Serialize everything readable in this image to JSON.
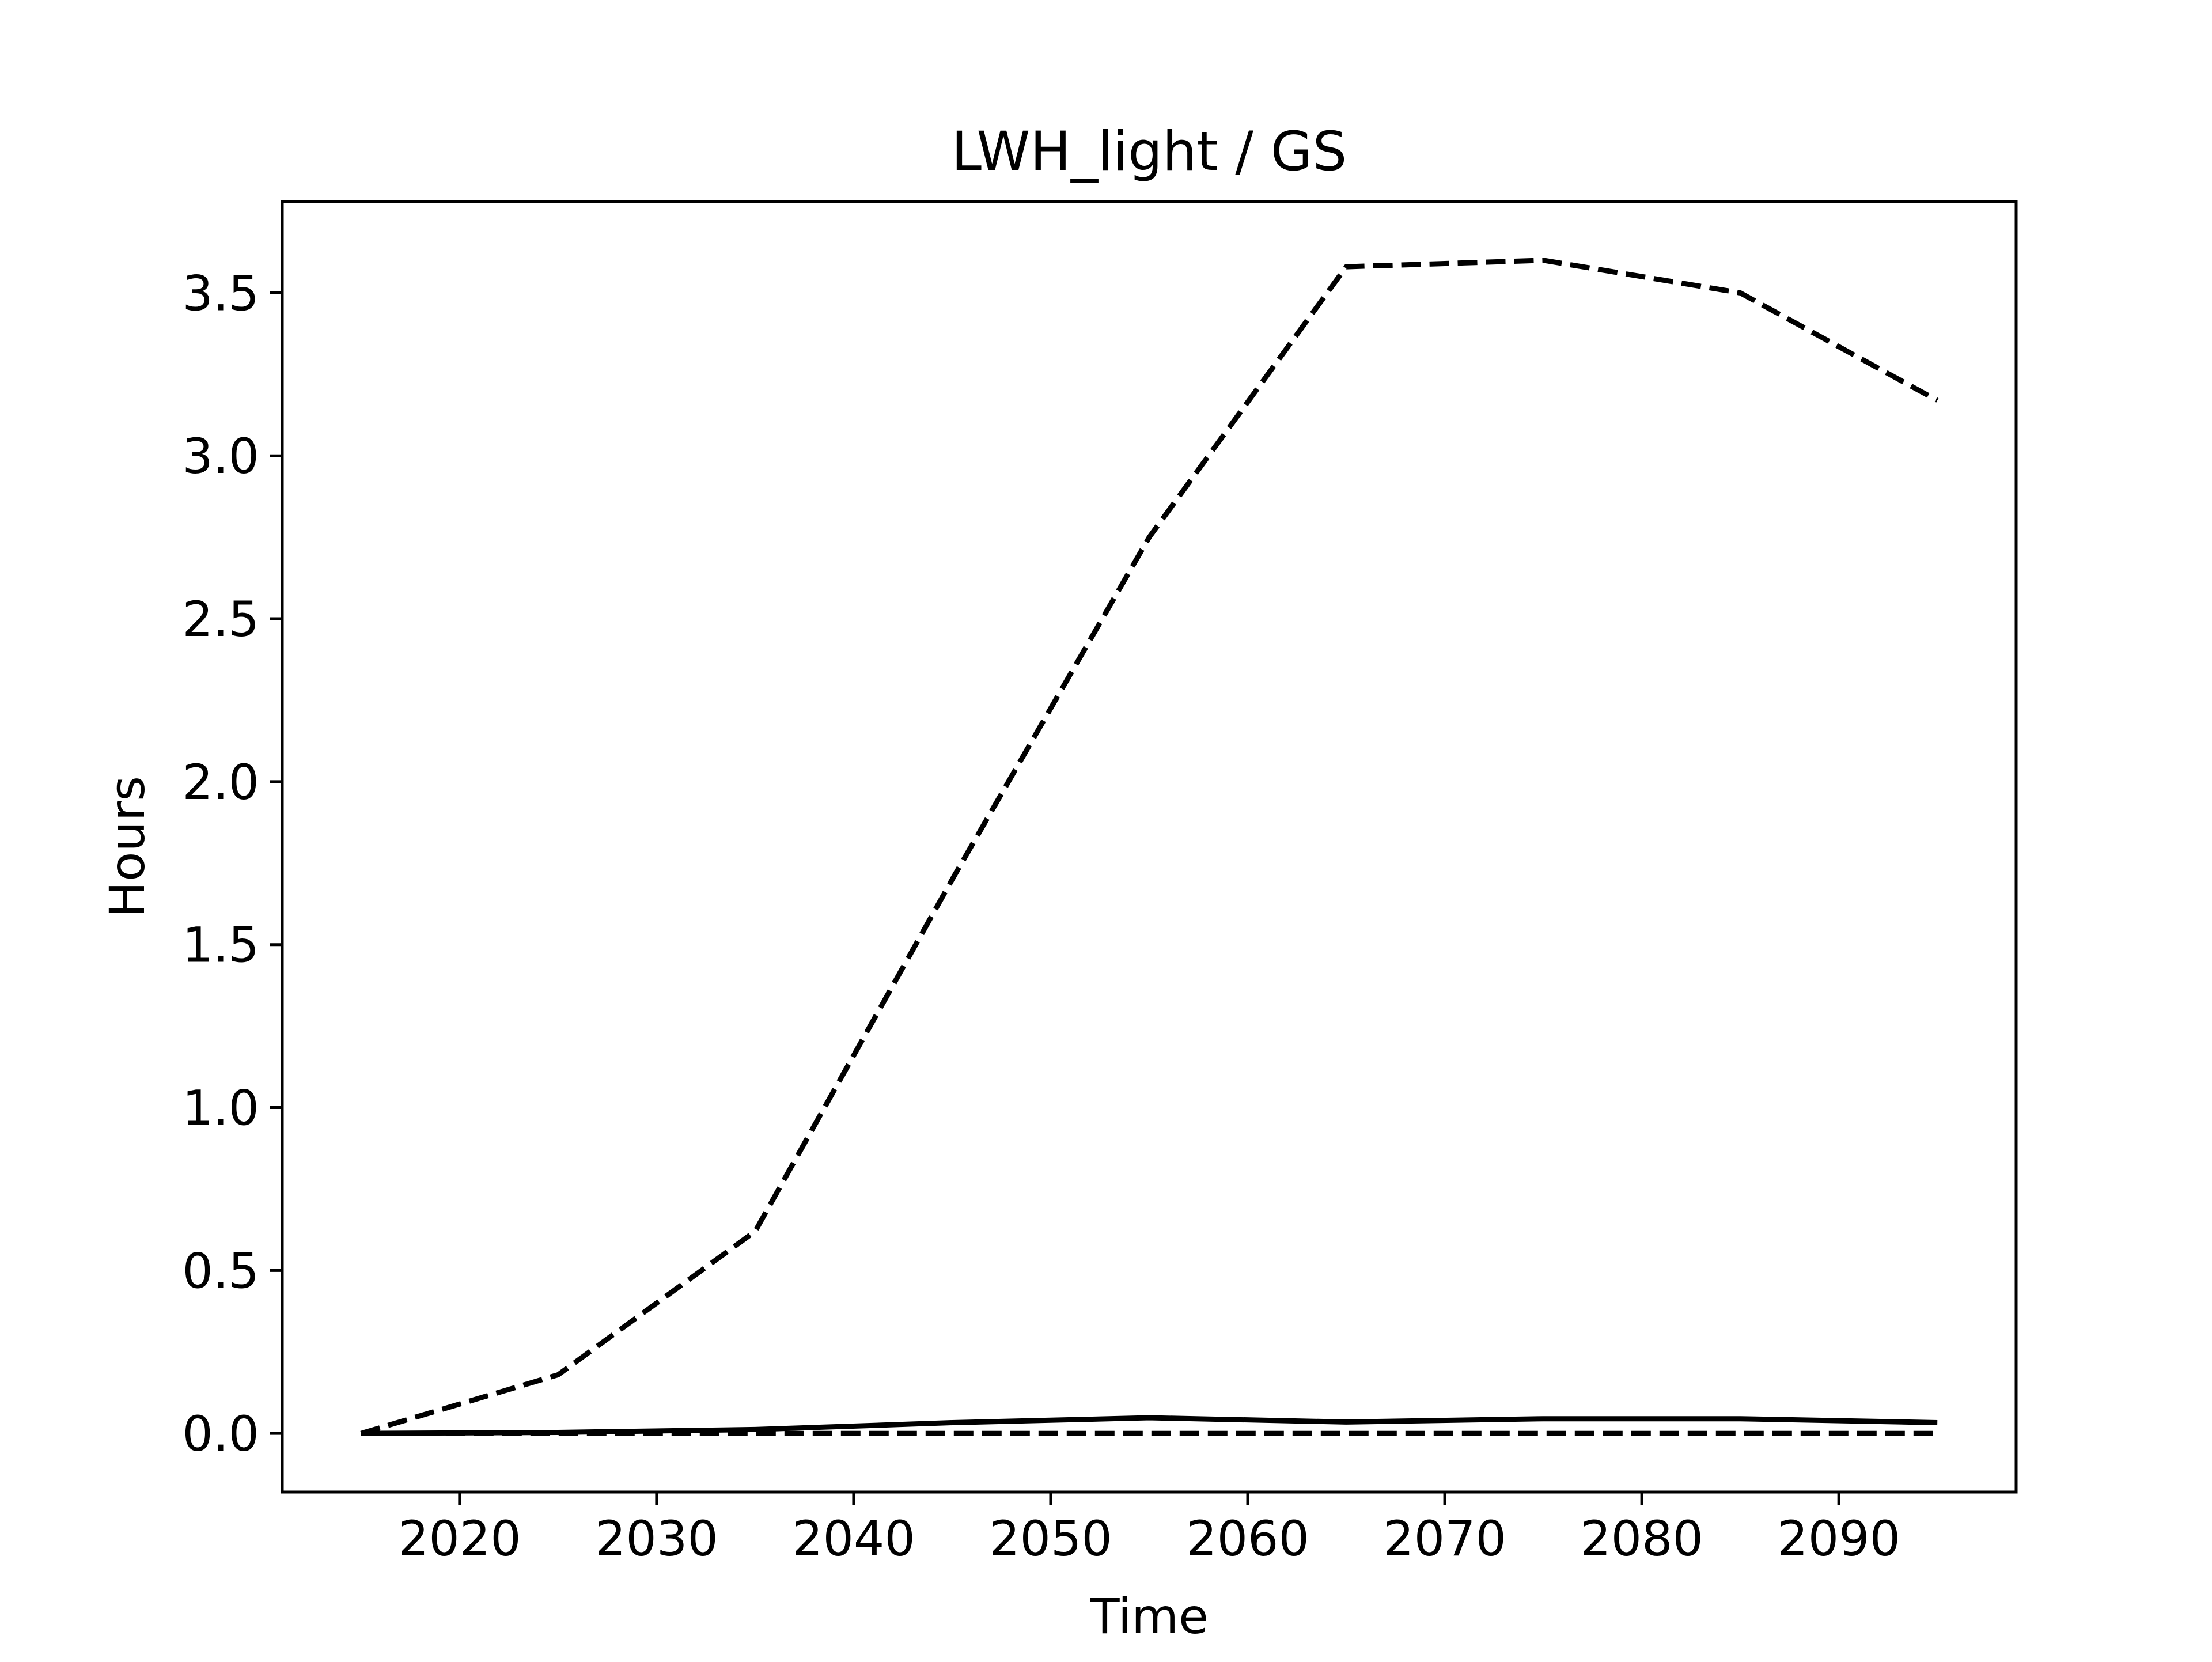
{
  "chart_data": {
    "type": "line",
    "title": "LWH_light / GS",
    "xlabel": "Time",
    "ylabel": "Hours",
    "xlim": [
      2011,
      2099
    ],
    "ylim": [
      -0.18,
      3.78
    ],
    "xticks": [
      2020,
      2030,
      2040,
      2050,
      2060,
      2070,
      2080,
      2090
    ],
    "xtick_labels": [
      "2020",
      "2030",
      "2040",
      "2050",
      "2060",
      "2070",
      "2080",
      "2090"
    ],
    "yticks": [
      0.0,
      0.5,
      1.0,
      1.5,
      2.0,
      2.5,
      3.0,
      3.5
    ],
    "ytick_labels": [
      "0.0",
      "0.5",
      "1.0",
      "1.5",
      "2.0",
      "2.5",
      "3.0",
      "3.5"
    ],
    "grid": false,
    "x": [
      2015,
      2025,
      2035,
      2045,
      2055,
      2065,
      2075,
      2085,
      2095
    ],
    "series": [
      {
        "style": "dashed",
        "color": "#000000",
        "values": [
          0.0,
          0.18,
          0.62,
          1.7,
          2.75,
          3.58,
          3.6,
          3.5,
          3.17
        ]
      },
      {
        "style": "solid",
        "color": "#000000",
        "values": [
          0.0,
          0.003,
          0.012,
          0.033,
          0.048,
          0.035,
          0.045,
          0.045,
          0.033
        ]
      },
      {
        "style": "dashed",
        "color": "#000000",
        "values": [
          0.0,
          0.0,
          0.0,
          0.0,
          0.0,
          0.0,
          0.0,
          0.0,
          0.0
        ]
      }
    ]
  }
}
